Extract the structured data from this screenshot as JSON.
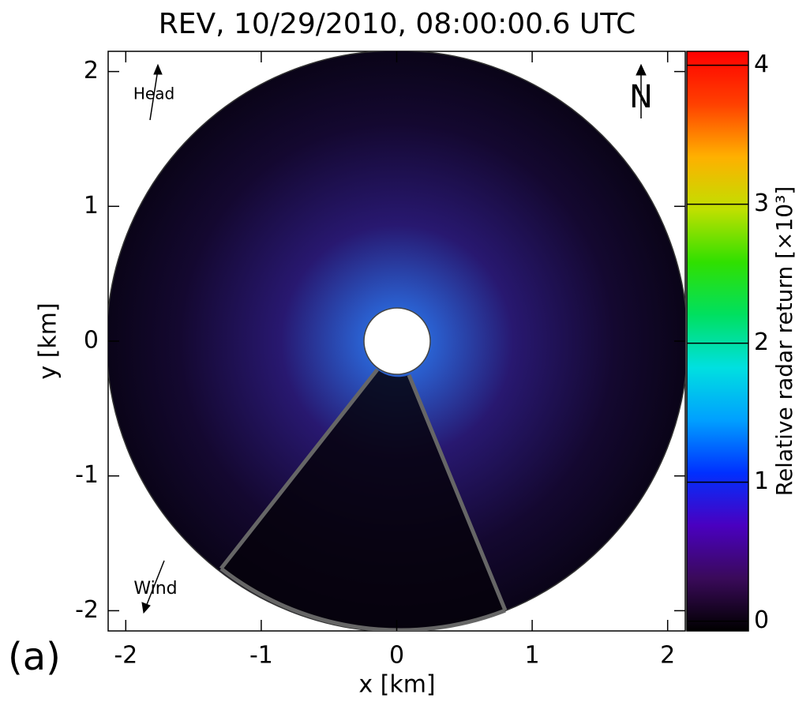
{
  "chart_data": {
    "type": "image",
    "title": "REV, 10/29/2010, 08:00:00.6 UTC",
    "x_label": "x [km]",
    "y_label": "y [km]",
    "xlim": [
      -2.13,
      2.13
    ],
    "ylim": [
      -2.15,
      2.15
    ],
    "xticks": [
      -2,
      -1,
      0,
      1,
      2
    ],
    "yticks": [
      -2,
      -1,
      0,
      1,
      2
    ],
    "colorbar": {
      "label": "Relative radar return [×10³]",
      "lim": [
        -0.07,
        4.1
      ],
      "ticks": [
        0,
        1,
        2,
        3,
        4
      ],
      "colors": [
        "#000000",
        "#3a0a5a",
        "#4a00c0",
        "#0030ff",
        "#00a0ff",
        "#00e0e0",
        "#00e060",
        "#30e000",
        "#c0e000",
        "#ffb000",
        "#ff4000",
        "#ff0000"
      ]
    },
    "annotations": [
      "Head",
      "Wind",
      "N",
      "(a)"
    ]
  }
}
